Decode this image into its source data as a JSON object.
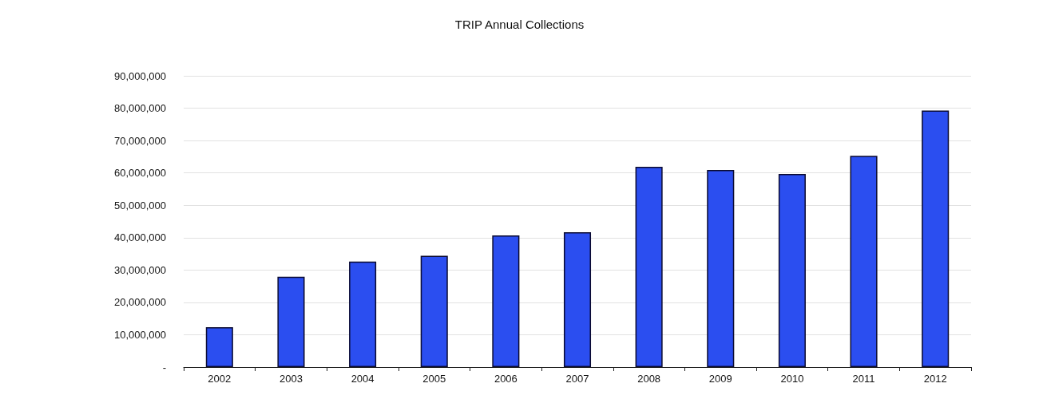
{
  "chart_data": {
    "type": "bar",
    "title": "TRIP Annual Collections",
    "categories": [
      "2002",
      "2003",
      "2004",
      "2005",
      "2006",
      "2007",
      "2008",
      "2009",
      "2010",
      "2011",
      "2012"
    ],
    "values": [
      12300000,
      27900000,
      32600000,
      34400000,
      40700000,
      41700000,
      61900000,
      60900000,
      59700000,
      65300000,
      79300000
    ],
    "color": "#2b4ef0",
    "ylim": [
      0,
      90000000
    ],
    "yticks": [
      {
        "value": 0,
        "label": "-"
      },
      {
        "value": 10000000,
        "label": "10,000,000"
      },
      {
        "value": 20000000,
        "label": "20,000,000"
      },
      {
        "value": 30000000,
        "label": "30,000,000"
      },
      {
        "value": 40000000,
        "label": "40,000,000"
      },
      {
        "value": 50000000,
        "label": "50,000,000"
      },
      {
        "value": 60000000,
        "label": "60,000,000"
      },
      {
        "value": 70000000,
        "label": "70,000,000"
      },
      {
        "value": 80000000,
        "label": "80,000,000"
      },
      {
        "value": 90000000,
        "label": "90,000,000"
      }
    ],
    "grid": "y"
  }
}
